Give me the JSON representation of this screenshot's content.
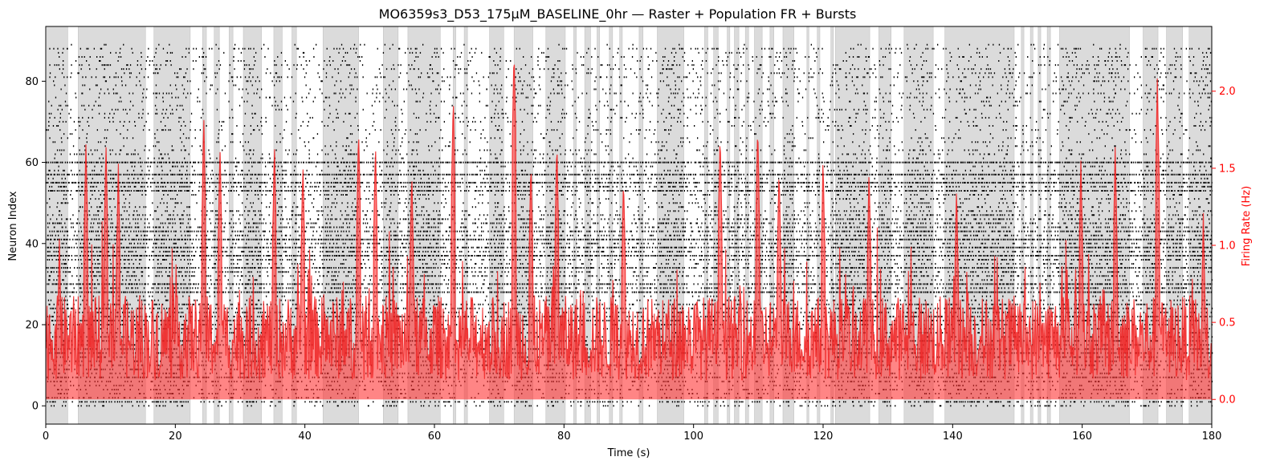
{
  "chart_data": {
    "type": "line",
    "title": "MO6359s3_D53_175µM_BASELINE_0hr — Raster + Population FR + Bursts",
    "xlabel": "Time (s)",
    "ylabel": "Neuron Index",
    "ylabel_right": "Firing Rate (Hz)",
    "xlim": [
      0,
      180
    ],
    "ylim": [
      -4.5,
      93.5
    ],
    "ylim_right": [
      -0.16,
      2.42
    ],
    "x_ticks": [
      0,
      20,
      40,
      60,
      80,
      100,
      120,
      140,
      160,
      180
    ],
    "y_ticks": [
      0,
      20,
      40,
      60,
      80
    ],
    "y_ticks_right": [
      "0.0",
      "0.5",
      "1.0",
      "1.5",
      "2.0"
    ],
    "colors": {
      "raster": "#000000",
      "firing_rate": "#ff0000",
      "burst_shading": "#d9d9d9",
      "right_axis": "#ff0000"
    },
    "grid": false,
    "legend": "none",
    "neuron_count": 90,
    "burst_intervals_s": [
      [
        0.2,
        3.4
      ],
      [
        5.0,
        15.4
      ],
      [
        16.7,
        22.3
      ],
      [
        24.2,
        24.8
      ],
      [
        26.0,
        26.8
      ],
      [
        28.3,
        28.9
      ],
      [
        30.5,
        33.3
      ],
      [
        35.2,
        36.5
      ],
      [
        38.0,
        38.7
      ],
      [
        42.8,
        48.3
      ],
      [
        52.1,
        54.4
      ],
      [
        55.9,
        60.9
      ],
      [
        62.9,
        63.3
      ],
      [
        64.6,
        65.1
      ],
      [
        68.5,
        70.7
      ],
      [
        72.3,
        75.2
      ],
      [
        77.2,
        80.2
      ],
      [
        81.5,
        81.9
      ],
      [
        83.2,
        84.1
      ],
      [
        85.1,
        85.5
      ],
      [
        87.0,
        87.5
      ],
      [
        88.6,
        89.0
      ],
      [
        91.6,
        92.2
      ],
      [
        94.4,
        98.5
      ],
      [
        101.7,
        102.2
      ],
      [
        103.1,
        103.8
      ],
      [
        105.2,
        105.6
      ],
      [
        106.3,
        107.0
      ],
      [
        108.0,
        108.5
      ],
      [
        109.4,
        110.6
      ],
      [
        111.8,
        112.4
      ],
      [
        113.8,
        115.5
      ],
      [
        117.5,
        117.8
      ],
      [
        119.1,
        119.5
      ],
      [
        121.2,
        121.6
      ],
      [
        121.9,
        127.2
      ],
      [
        128.6,
        130.5
      ],
      [
        132.5,
        137.0
      ],
      [
        138.8,
        149.5
      ],
      [
        150.6,
        151.0
      ],
      [
        152.0,
        152.4
      ],
      [
        153.2,
        153.6
      ],
      [
        154.6,
        155.1
      ],
      [
        156.5,
        167.3
      ],
      [
        169.4,
        171.7
      ],
      [
        173.0,
        175.5
      ],
      [
        176.5,
        180.0
      ]
    ],
    "firing_rate_peaks": [
      {
        "t": 2.1,
        "hz": 1.02
      },
      {
        "t": 6.2,
        "hz": 1.66
      },
      {
        "t": 9.3,
        "hz": 1.67
      },
      {
        "t": 11.2,
        "hz": 1.53
      },
      {
        "t": 24.4,
        "hz": 1.82
      },
      {
        "t": 26.9,
        "hz": 1.64
      },
      {
        "t": 35.3,
        "hz": 1.67
      },
      {
        "t": 39.7,
        "hz": 1.56
      },
      {
        "t": 48.3,
        "hz": 1.77
      },
      {
        "t": 50.9,
        "hz": 1.66
      },
      {
        "t": 56.5,
        "hz": 1.5
      },
      {
        "t": 62.9,
        "hz": 1.96
      },
      {
        "t": 72.3,
        "hz": 2.27
      },
      {
        "t": 74.9,
        "hz": 1.55
      },
      {
        "t": 78.9,
        "hz": 1.68
      },
      {
        "t": 89.2,
        "hz": 1.45
      },
      {
        "t": 104.1,
        "hz": 1.74
      },
      {
        "t": 109.9,
        "hz": 1.78
      },
      {
        "t": 113.2,
        "hz": 1.49
      },
      {
        "t": 120.0,
        "hz": 1.57
      },
      {
        "t": 127.1,
        "hz": 1.49
      },
      {
        "t": 140.6,
        "hz": 1.4
      },
      {
        "t": 159.8,
        "hz": 1.55
      },
      {
        "t": 165.1,
        "hz": 1.64
      },
      {
        "t": 171.6,
        "hz": 2.07
      },
      {
        "t": 178.7,
        "hz": 1.2
      }
    ],
    "firing_rate_baseline_hz": 0.4
  }
}
